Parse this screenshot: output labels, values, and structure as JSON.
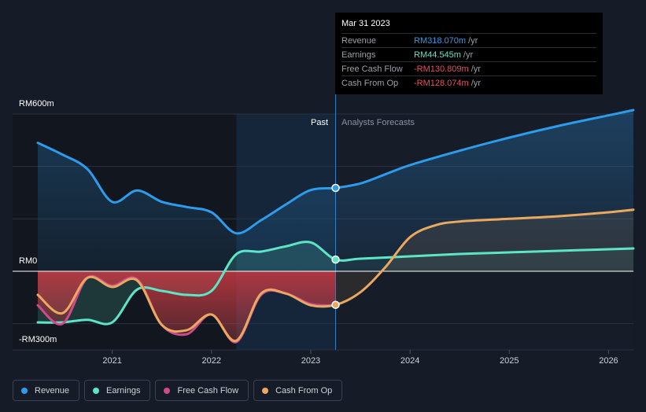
{
  "tooltip": {
    "date": "Mar 31 2023",
    "rows": [
      {
        "label": "Revenue",
        "value": "RM318.070m",
        "unit": "/yr",
        "color": "#2d9cec"
      },
      {
        "label": "Earnings",
        "value": "RM44.545m",
        "unit": "/yr",
        "color": "#5ce5c6"
      },
      {
        "label": "Free Cash Flow",
        "value": "-RM130.809m",
        "unit": "/yr",
        "color": "#ef4b5a"
      },
      {
        "label": "Cash From Op",
        "value": "-RM128.074m",
        "unit": "/yr",
        "color": "#ef4b5a"
      }
    ]
  },
  "labels": {
    "past": "Past",
    "forecast": "Analysts Forecasts"
  },
  "legend": [
    {
      "label": "Revenue",
      "color": "#2d9cec"
    },
    {
      "label": "Earnings",
      "color": "#5ce5c6"
    },
    {
      "label": "Free Cash Flow",
      "color": "#cf4a8c"
    },
    {
      "label": "Cash From Op",
      "color": "#eaa860"
    }
  ],
  "chart_data": {
    "type": "line",
    "title": "",
    "unit": "RM m",
    "ylim": [
      -300,
      600
    ],
    "y_tick_labels": [
      "RM600m",
      "RM0",
      "-RM300m"
    ],
    "y_ticks": [
      600,
      0,
      -300
    ],
    "xlim": [
      2020.25,
      2026.25
    ],
    "x_tick_labels": [
      "2021",
      "2022",
      "2023",
      "2024",
      "2025",
      "2026"
    ],
    "x_ticks": [
      2021,
      2022,
      2023,
      2024,
      2025,
      2026
    ],
    "past_end": 2023.25,
    "highlight_start": 2022.25,
    "series": [
      {
        "name": "Revenue",
        "color": "#2d9cec",
        "area": true,
        "x": [
          2020.25,
          2020.5,
          2020.75,
          2021.0,
          2021.25,
          2021.5,
          2021.75,
          2022.0,
          2022.25,
          2022.5,
          2022.75,
          2023.0,
          2023.25,
          2023.5,
          2023.75,
          2024.0,
          2024.5,
          2025.0,
          2025.5,
          2026.0,
          2026.25
        ],
        "y": [
          490,
          445,
          390,
          265,
          308,
          265,
          245,
          225,
          145,
          195,
          255,
          310,
          318,
          335,
          370,
          405,
          460,
          510,
          555,
          595,
          615
        ]
      },
      {
        "name": "Earnings",
        "color": "#5ce5c6",
        "area": true,
        "x": [
          2020.25,
          2020.5,
          2020.75,
          2021.0,
          2021.25,
          2021.5,
          2021.75,
          2022.0,
          2022.25,
          2022.5,
          2022.75,
          2023.0,
          2023.25,
          2023.5,
          2024.0,
          2024.5,
          2025.0,
          2025.5,
          2026.0,
          2026.25
        ],
        "y": [
          -195,
          -195,
          -185,
          -195,
          -70,
          -75,
          -90,
          -75,
          65,
          75,
          95,
          110,
          45,
          48,
          57,
          66,
          72,
          78,
          84,
          87
        ]
      },
      {
        "name": "Free Cash Flow",
        "color": "#cf4a8c",
        "area": true,
        "x": [
          2020.25,
          2020.5,
          2020.75,
          2021.0,
          2021.25,
          2021.5,
          2021.75,
          2022.0,
          2022.25,
          2022.5,
          2022.75,
          2023.0,
          2023.25
        ],
        "y": [
          -130,
          -200,
          -25,
          -55,
          -30,
          -205,
          -240,
          -165,
          -270,
          -90,
          -85,
          -125,
          -131
        ]
      },
      {
        "name": "Cash From Op",
        "color": "#eaa860",
        "area": true,
        "x": [
          2020.25,
          2020.5,
          2020.75,
          2021.0,
          2021.25,
          2021.5,
          2021.75,
          2022.0,
          2022.25,
          2022.5,
          2022.75,
          2023.0,
          2023.25,
          2023.5,
          2023.75,
          2024.0,
          2024.25,
          2024.5,
          2025.0,
          2025.5,
          2026.0,
          2026.25
        ],
        "y": [
          -90,
          -160,
          -25,
          -60,
          -35,
          -205,
          -225,
          -165,
          -265,
          -85,
          -85,
          -130,
          -128,
          -80,
          15,
          130,
          175,
          190,
          200,
          210,
          225,
          235
        ]
      }
    ],
    "markers": [
      {
        "series": "Revenue",
        "x": 2023.25,
        "y": 318.07
      },
      {
        "series": "Earnings",
        "x": 2023.25,
        "y": 44.545
      },
      {
        "series": "Cash From Op",
        "x": 2023.25,
        "y": -128.074
      }
    ]
  }
}
